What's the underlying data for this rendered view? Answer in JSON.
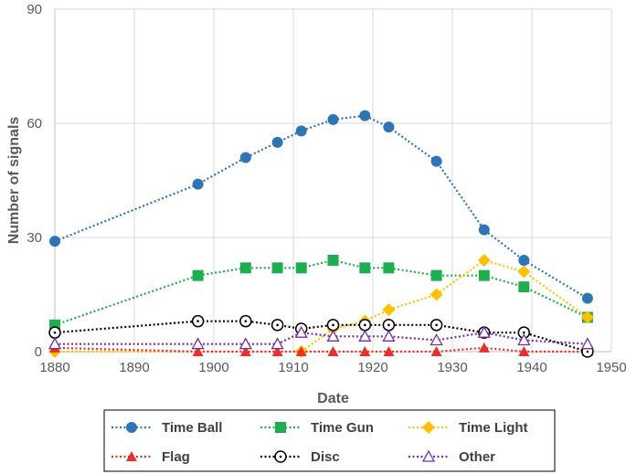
{
  "chart_data": {
    "type": "line",
    "title": "",
    "xlabel": "Date",
    "ylabel": "Number of signals",
    "xlim": [
      1880,
      1950
    ],
    "ylim": [
      0,
      90
    ],
    "xticks": [
      1880,
      1890,
      1900,
      1910,
      1920,
      1930,
      1940,
      1950
    ],
    "yticks": [
      0,
      30,
      60,
      90
    ],
    "grid": true,
    "legend_position": "bottom",
    "series": [
      {
        "name": "Time Ball",
        "color": "#2e75b6",
        "marker": "circle",
        "points": [
          [
            1880,
            29
          ],
          [
            1898,
            44
          ],
          [
            1904,
            51
          ],
          [
            1908,
            55
          ],
          [
            1911,
            58
          ],
          [
            1915,
            61
          ],
          [
            1919,
            62
          ],
          [
            1922,
            59
          ],
          [
            1928,
            50
          ],
          [
            1934,
            32
          ],
          [
            1939,
            24
          ],
          [
            1947,
            14
          ]
        ]
      },
      {
        "name": "Time Gun",
        "color": "#1fae4f",
        "marker": "square",
        "points": [
          [
            1880,
            7
          ],
          [
            1898,
            20
          ],
          [
            1904,
            22
          ],
          [
            1908,
            22
          ],
          [
            1911,
            22
          ],
          [
            1915,
            24
          ],
          [
            1919,
            22
          ],
          [
            1922,
            22
          ],
          [
            1928,
            20
          ],
          [
            1934,
            20
          ],
          [
            1939,
            17
          ],
          [
            1947,
            9
          ]
        ]
      },
      {
        "name": "Time Light",
        "color": "#ffc000",
        "marker": "diamond",
        "points": [
          [
            1880,
            0
          ],
          [
            1911,
            0
          ],
          [
            1915,
            6
          ],
          [
            1919,
            8
          ],
          [
            1922,
            11
          ],
          [
            1928,
            15
          ],
          [
            1934,
            24
          ],
          [
            1939,
            21
          ],
          [
            1947,
            9
          ]
        ]
      },
      {
        "name": "Flag",
        "color": "#e8302a",
        "marker": "triangle",
        "points": [
          [
            1880,
            1
          ],
          [
            1898,
            0
          ],
          [
            1904,
            0
          ],
          [
            1908,
            0
          ],
          [
            1911,
            0
          ],
          [
            1915,
            0
          ],
          [
            1919,
            0
          ],
          [
            1922,
            0
          ],
          [
            1928,
            0
          ],
          [
            1934,
            1
          ],
          [
            1939,
            0
          ],
          [
            1947,
            0
          ]
        ]
      },
      {
        "name": "Disc",
        "color": "#000000",
        "marker": "open-circle",
        "points": [
          [
            1880,
            5
          ],
          [
            1898,
            8
          ],
          [
            1904,
            8
          ],
          [
            1908,
            7
          ],
          [
            1911,
            6
          ],
          [
            1915,
            7
          ],
          [
            1919,
            7
          ],
          [
            1922,
            7
          ],
          [
            1928,
            7
          ],
          [
            1934,
            5
          ],
          [
            1939,
            5
          ],
          [
            1947,
            0
          ]
        ]
      },
      {
        "name": "Other",
        "color": "#7030a0",
        "marker": "open-triangle",
        "points": [
          [
            1880,
            2
          ],
          [
            1898,
            2
          ],
          [
            1904,
            2
          ],
          [
            1908,
            2
          ],
          [
            1911,
            5
          ],
          [
            1915,
            4
          ],
          [
            1919,
            4
          ],
          [
            1922,
            4
          ],
          [
            1928,
            3
          ],
          [
            1934,
            5
          ],
          [
            1939,
            3
          ],
          [
            1947,
            2
          ]
        ]
      }
    ]
  }
}
